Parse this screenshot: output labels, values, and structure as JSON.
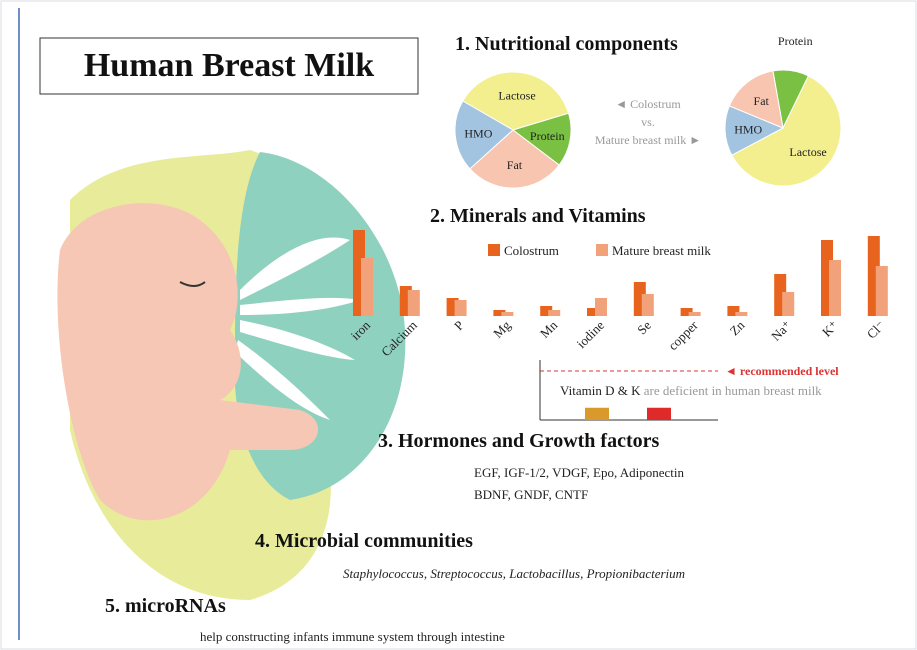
{
  "title": "Human Breast Milk",
  "nutritional": {
    "heading": "1. Nutritional components",
    "compare": [
      "◄ Colostrum",
      "vs.",
      "Mature breast milk ►"
    ],
    "pies": [
      {
        "labels": [
          "Lactose",
          "Protein",
          "Fat",
          "HMO"
        ],
        "values": [
          37,
          15,
          28,
          20
        ],
        "colors": [
          "#f3ef8e",
          "#79c043",
          "#f7c5b0",
          "#a3c4e0"
        ]
      },
      {
        "labels": [
          "Protein",
          "Lactose",
          "HMO",
          "Fat"
        ],
        "values": [
          10,
          60,
          14,
          16
        ],
        "colors": [
          "#79c043",
          "#f3ef8e",
          "#a3c4e0",
          "#f7c5b0"
        ]
      }
    ]
  },
  "minerals": {
    "heading": "2. Minerals and Vitamins",
    "type": "bar",
    "categories": [
      "iron",
      "Calcium",
      "P",
      "Mg",
      "Mn",
      "iodine",
      "Se",
      "copper",
      "Zn",
      "Na⁺",
      "K⁺",
      "Cl⁻"
    ],
    "series": [
      {
        "name": "Colostrum",
        "color": "#e8641e",
        "values": [
          86,
          30,
          18,
          6,
          10,
          8,
          34,
          8,
          10,
          42,
          76,
          80
        ]
      },
      {
        "name": "Mature breast milk",
        "color": "#f2a27a",
        "values": [
          58,
          26,
          16,
          4,
          6,
          18,
          22,
          4,
          4,
          24,
          56,
          50
        ]
      }
    ]
  },
  "vitamins": {
    "reference_label": "◄ recommended level",
    "reference_value": 100,
    "colors": [
      "#d99a2b",
      "#e02a2a"
    ],
    "values": [
      25,
      25
    ],
    "note_bold": "Vitamin D & K",
    "note_rest": "are deficient in human breast milk"
  },
  "hormones": {
    "heading": "3. Hormones and Growth factors",
    "lines": [
      "EGF, IGF-1/2, VDGF, Epo, Adiponectin",
      "BDNF, GNDF, CNTF"
    ]
  },
  "microbes": {
    "heading": "4. Microbial communities",
    "text": "Staphylococcus, Streptococcus, Lactobacillus, Propionibacterium"
  },
  "micrornas": {
    "heading": "5. microRNAs",
    "text": "help constructing infants immune system through intestine"
  }
}
